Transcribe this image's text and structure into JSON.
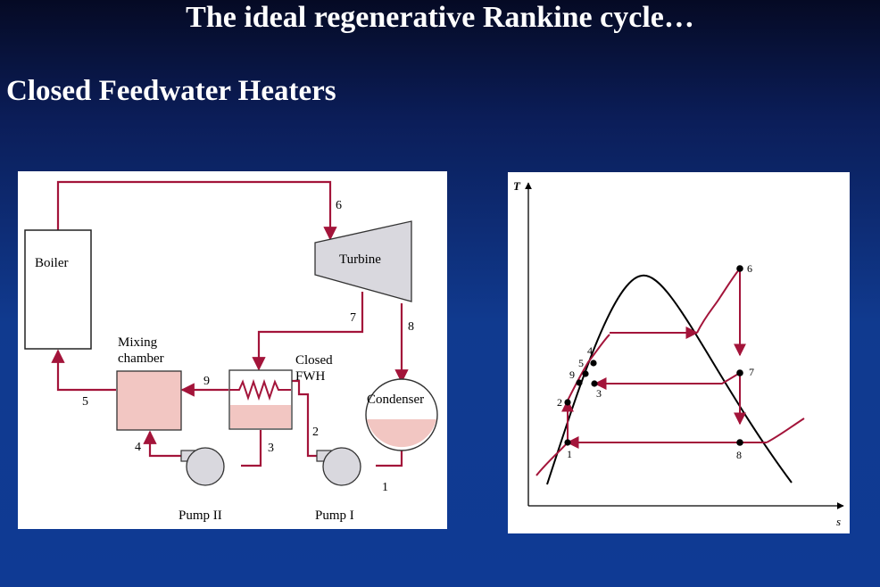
{
  "slide": {
    "title": "The ideal regenerative Rankine cycle…",
    "subtitle": "Closed Feedwater Heaters"
  },
  "schematic": {
    "components": {
      "boiler": "Boiler",
      "turbine": "Turbine",
      "condenser": "Condenser",
      "mixing_chamber": [
        "Mixing",
        "chamber"
      ],
      "closed_fwh": [
        "Closed",
        "FWH"
      ],
      "pump_one": "Pump I",
      "pump_two": "Pump II"
    },
    "state_labels": [
      "1",
      "2",
      "3",
      "4",
      "5",
      "6",
      "7",
      "8",
      "9"
    ]
  },
  "ts_diagram": {
    "y_axis_label": "T",
    "x_axis_label": "s",
    "state_labels": [
      "1",
      "2",
      "3",
      "4",
      "5",
      "9",
      "6",
      "7",
      "8"
    ]
  },
  "colors": {
    "pipe": "#a3143a",
    "liquid_fill": "#f2c6c2",
    "pump_fill": "#d9d8de"
  }
}
